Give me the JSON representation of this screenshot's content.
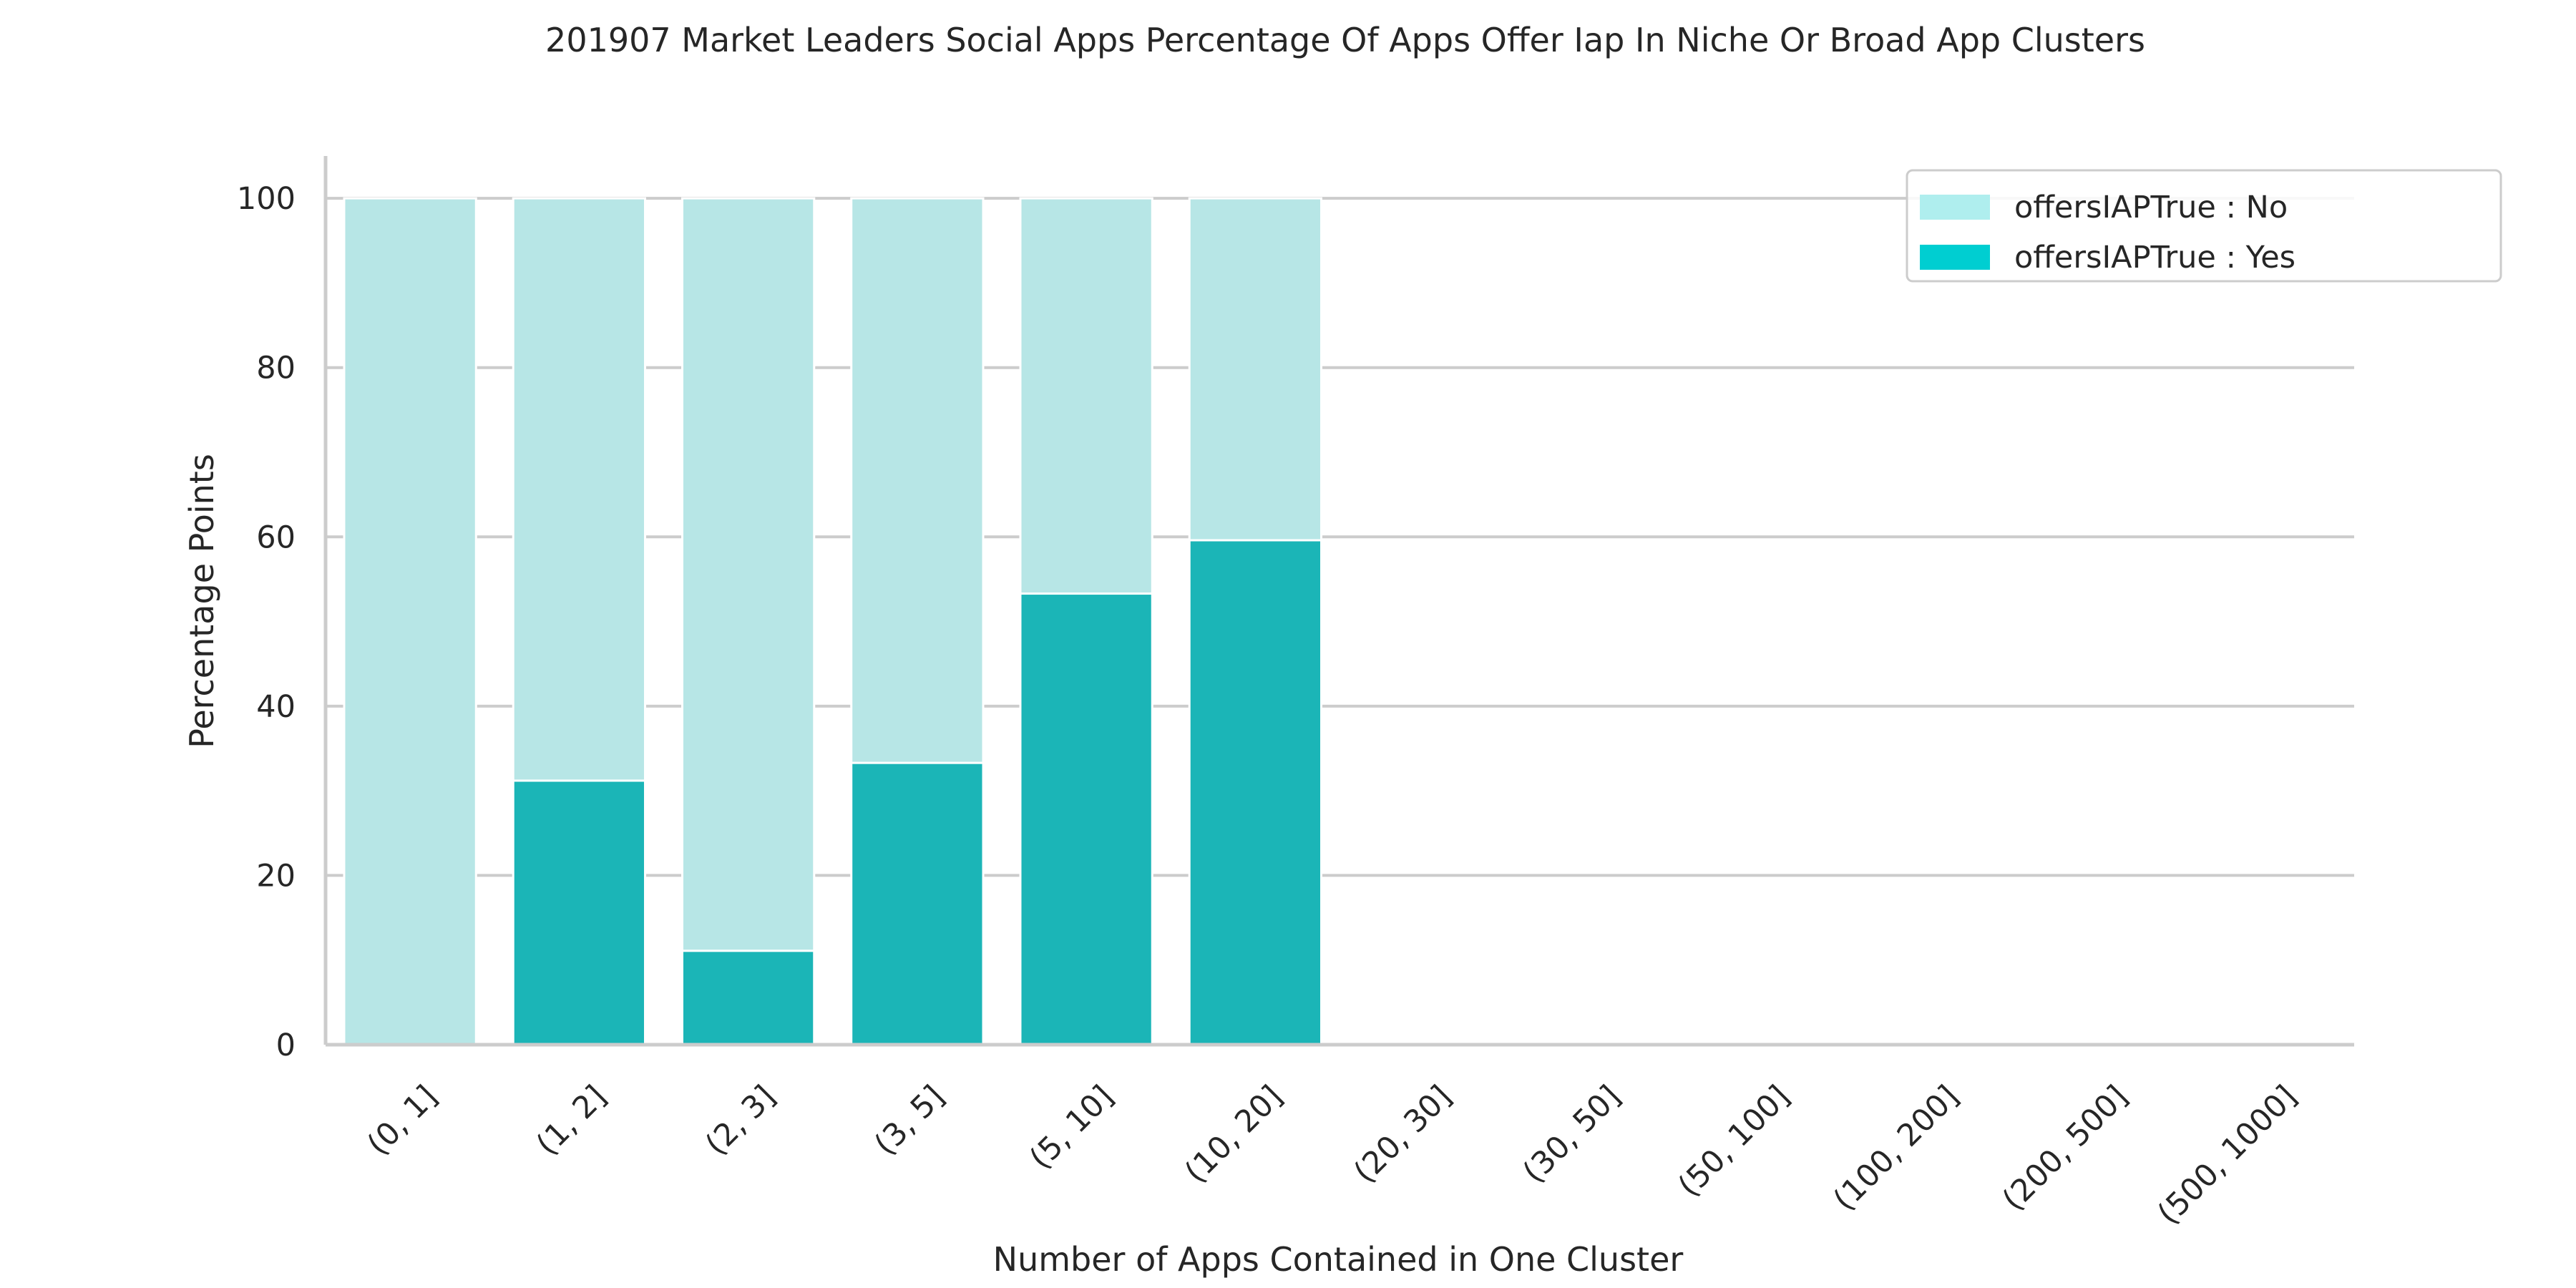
{
  "chart_data": {
    "type": "bar",
    "stacked": true,
    "title": "201907 Market Leaders Social Apps Percentage Of Apps Offer Iap In Niche Or Broad App Clusters",
    "xlabel": "Number of Apps Contained in One Cluster",
    "ylabel": "Percentage Points",
    "ylim": [
      0,
      105
    ],
    "yticks": [
      0,
      20,
      40,
      60,
      80,
      100
    ],
    "grid": "horizontal",
    "legend_position": "top-right",
    "categories": [
      "(0, 1]",
      "(1, 2]",
      "(2, 3]",
      "(3, 5]",
      "(5, 10]",
      "(10, 20]",
      "(20, 30]",
      "(30, 50]",
      "(50, 100]",
      "(100, 200]",
      "(200, 500]",
      "(500, 1000]"
    ],
    "series": [
      {
        "name": "offersIAPTrue : Yes",
        "color": "#1bb5b7",
        "legend_color": "#00ced1",
        "values": [
          0,
          31.2,
          11.1,
          33.3,
          53.3,
          59.6,
          0,
          0,
          0,
          0,
          0,
          0
        ]
      },
      {
        "name": "offersIAPTrue : No",
        "color": "#b7e6e6",
        "legend_color": "#afeeee",
        "values": [
          100,
          68.8,
          88.9,
          66.7,
          46.7,
          40.4,
          0,
          0,
          0,
          0,
          0,
          0
        ]
      }
    ]
  }
}
